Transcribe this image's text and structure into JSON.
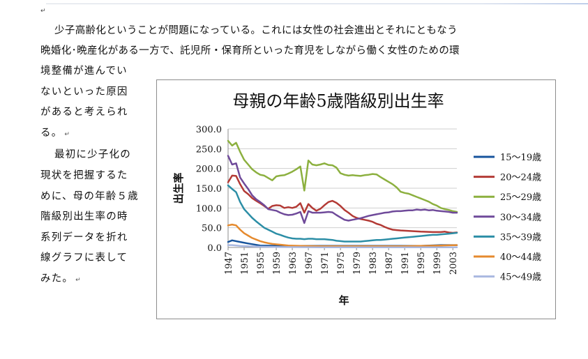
{
  "document": {
    "paragraph_mark": "↵",
    "intro_lines": [
      "少子高齢化ということが問題になっている。これには女性の社会進出とそれにともなう",
      "晩婚化･晩産化がある一方で、託児所・保育所といった育児をしながら働く女性のための環"
    ],
    "side_lines": [
      "境整備が進んでい",
      "ないといった原因",
      "があると考えられ",
      "る。",
      "最初に少子化の",
      "現状を把握するた",
      "めに、母の年齢５歳",
      "階級別出生率の時",
      "系列データを折れ",
      "線グラフに表して",
      "みた。"
    ]
  },
  "chart_data": {
    "type": "line",
    "title": "母親の年齢5歳階級別出生率",
    "xlabel": "年",
    "ylabel": "出生率",
    "ylim": [
      0,
      300
    ],
    "yticks": [
      "0.0",
      "50.0",
      "100.0",
      "150.0",
      "200.0",
      "250.0",
      "300.0"
    ],
    "xlim": [
      1947,
      2004
    ],
    "xticks": [
      "1947",
      "1951",
      "1955",
      "1959",
      "1963",
      "1967",
      "1971",
      "1975",
      "1979",
      "1983",
      "1987",
      "1991",
      "1995",
      "1999",
      "2003"
    ],
    "grid": true,
    "legend_position": "right",
    "series": [
      {
        "name": "15～19歳",
        "color": "#17549c",
        "points": [
          [
            1947,
            14
          ],
          [
            1948,
            18
          ],
          [
            1950,
            14
          ],
          [
            1952,
            10
          ],
          [
            1955,
            5
          ],
          [
            1960,
            4
          ],
          [
            1965,
            4
          ],
          [
            1970,
            4
          ],
          [
            1975,
            4
          ],
          [
            1980,
            4
          ],
          [
            1985,
            4
          ],
          [
            1990,
            4
          ],
          [
            1995,
            4
          ],
          [
            2000,
            6
          ],
          [
            2004,
            6
          ]
        ]
      },
      {
        "name": "20～24歳",
        "color": "#b33a35",
        "points": [
          [
            1947,
            165
          ],
          [
            1948,
            182
          ],
          [
            1949,
            181
          ],
          [
            1950,
            160
          ],
          [
            1951,
            143
          ],
          [
            1952,
            135
          ],
          [
            1953,
            125
          ],
          [
            1954,
            118
          ],
          [
            1955,
            112
          ],
          [
            1956,
            105
          ],
          [
            1957,
            98
          ],
          [
            1958,
            105
          ],
          [
            1959,
            107
          ],
          [
            1960,
            106
          ],
          [
            1961,
            100
          ],
          [
            1962,
            102
          ],
          [
            1963,
            100
          ],
          [
            1964,
            103
          ],
          [
            1965,
            112
          ],
          [
            1966,
            88
          ],
          [
            1967,
            110
          ],
          [
            1968,
            100
          ],
          [
            1969,
            93
          ],
          [
            1970,
            98
          ],
          [
            1971,
            107
          ],
          [
            1972,
            115
          ],
          [
            1973,
            118
          ],
          [
            1974,
            113
          ],
          [
            1975,
            105
          ],
          [
            1976,
            95
          ],
          [
            1977,
            88
          ],
          [
            1978,
            80
          ],
          [
            1979,
            75
          ],
          [
            1980,
            72
          ],
          [
            1981,
            70
          ],
          [
            1982,
            68
          ],
          [
            1983,
            65
          ],
          [
            1984,
            60
          ],
          [
            1985,
            57
          ],
          [
            1986,
            52
          ],
          [
            1987,
            48
          ],
          [
            1988,
            45
          ],
          [
            1989,
            44
          ],
          [
            1990,
            43
          ],
          [
            1992,
            42
          ],
          [
            1995,
            40
          ],
          [
            1998,
            39
          ],
          [
            2000,
            39
          ],
          [
            2001,
            40
          ],
          [
            2002,
            38
          ],
          [
            2003,
            37
          ],
          [
            2004,
            38
          ]
        ]
      },
      {
        "name": "25～29歳",
        "color": "#8cb03f",
        "points": [
          [
            1947,
            270
          ],
          [
            1948,
            258
          ],
          [
            1949,
            265
          ],
          [
            1950,
            242
          ],
          [
            1951,
            222
          ],
          [
            1952,
            210
          ],
          [
            1953,
            198
          ],
          [
            1954,
            190
          ],
          [
            1955,
            184
          ],
          [
            1956,
            182
          ],
          [
            1957,
            176
          ],
          [
            1958,
            170
          ],
          [
            1959,
            180
          ],
          [
            1960,
            182
          ],
          [
            1961,
            183
          ],
          [
            1962,
            187
          ],
          [
            1963,
            192
          ],
          [
            1964,
            198
          ],
          [
            1965,
            205
          ],
          [
            1966,
            144
          ],
          [
            1967,
            220
          ],
          [
            1968,
            210
          ],
          [
            1969,
            208
          ],
          [
            1970,
            210
          ],
          [
            1971,
            213
          ],
          [
            1972,
            209
          ],
          [
            1973,
            208
          ],
          [
            1974,
            202
          ],
          [
            1975,
            188
          ],
          [
            1976,
            184
          ],
          [
            1977,
            182
          ],
          [
            1978,
            183
          ],
          [
            1979,
            182
          ],
          [
            1980,
            181
          ],
          [
            1981,
            183
          ],
          [
            1982,
            184
          ],
          [
            1983,
            186
          ],
          [
            1984,
            185
          ],
          [
            1985,
            178
          ],
          [
            1986,
            172
          ],
          [
            1987,
            166
          ],
          [
            1988,
            160
          ],
          [
            1989,
            152
          ],
          [
            1990,
            141
          ],
          [
            1991,
            138
          ],
          [
            1992,
            136
          ],
          [
            1993,
            132
          ],
          [
            1994,
            128
          ],
          [
            1995,
            124
          ],
          [
            1996,
            120
          ],
          [
            1997,
            116
          ],
          [
            1998,
            110
          ],
          [
            1999,
            106
          ],
          [
            2000,
            100
          ],
          [
            2001,
            97
          ],
          [
            2002,
            95
          ],
          [
            2003,
            92
          ],
          [
            2004,
            90
          ]
        ]
      },
      {
        "name": "30～34歳",
        "color": "#6f4a9a",
        "points": [
          [
            1947,
            232
          ],
          [
            1948,
            210
          ],
          [
            1949,
            213
          ],
          [
            1950,
            177
          ],
          [
            1951,
            162
          ],
          [
            1952,
            148
          ],
          [
            1953,
            132
          ],
          [
            1954,
            122
          ],
          [
            1955,
            115
          ],
          [
            1956,
            107
          ],
          [
            1957,
            97
          ],
          [
            1958,
            95
          ],
          [
            1959,
            93
          ],
          [
            1960,
            88
          ],
          [
            1961,
            84
          ],
          [
            1962,
            82
          ],
          [
            1963,
            83
          ],
          [
            1964,
            86
          ],
          [
            1965,
            90
          ],
          [
            1966,
            62
          ],
          [
            1967,
            92
          ],
          [
            1968,
            88
          ],
          [
            1969,
            88
          ],
          [
            1970,
            88
          ],
          [
            1971,
            89
          ],
          [
            1972,
            90
          ],
          [
            1973,
            89
          ],
          [
            1974,
            82
          ],
          [
            1975,
            76
          ],
          [
            1976,
            70
          ],
          [
            1977,
            68
          ],
          [
            1978,
            70
          ],
          [
            1979,
            72
          ],
          [
            1980,
            74
          ],
          [
            1981,
            77
          ],
          [
            1982,
            80
          ],
          [
            1983,
            82
          ],
          [
            1984,
            84
          ],
          [
            1985,
            86
          ],
          [
            1986,
            88
          ],
          [
            1987,
            89
          ],
          [
            1988,
            91
          ],
          [
            1989,
            92
          ],
          [
            1990,
            92
          ],
          [
            1991,
            93
          ],
          [
            1992,
            94
          ],
          [
            1993,
            94
          ],
          [
            1994,
            96
          ],
          [
            1995,
            95
          ],
          [
            1996,
            96
          ],
          [
            1997,
            94
          ],
          [
            1998,
            95
          ],
          [
            1999,
            93
          ],
          [
            2000,
            92
          ],
          [
            2001,
            91
          ],
          [
            2002,
            90
          ],
          [
            2003,
            88
          ],
          [
            2004,
            88
          ]
        ]
      },
      {
        "name": "35～39歳",
        "color": "#2c8ea6",
        "points": [
          [
            1947,
            157
          ],
          [
            1948,
            148
          ],
          [
            1949,
            140
          ],
          [
            1950,
            115
          ],
          [
            1951,
            97
          ],
          [
            1952,
            86
          ],
          [
            1953,
            75
          ],
          [
            1954,
            66
          ],
          [
            1955,
            58
          ],
          [
            1956,
            50
          ],
          [
            1957,
            45
          ],
          [
            1958,
            40
          ],
          [
            1959,
            35
          ],
          [
            1960,
            32
          ],
          [
            1961,
            28
          ],
          [
            1962,
            25
          ],
          [
            1963,
            23
          ],
          [
            1964,
            22
          ],
          [
            1965,
            22
          ],
          [
            1966,
            21
          ],
          [
            1967,
            22
          ],
          [
            1968,
            22
          ],
          [
            1969,
            21
          ],
          [
            1970,
            21
          ],
          [
            1971,
            21
          ],
          [
            1972,
            20
          ],
          [
            1973,
            19
          ],
          [
            1974,
            17
          ],
          [
            1975,
            16
          ],
          [
            1976,
            15
          ],
          [
            1977,
            15
          ],
          [
            1978,
            15
          ],
          [
            1979,
            15
          ],
          [
            1980,
            15
          ],
          [
            1981,
            16
          ],
          [
            1982,
            17
          ],
          [
            1983,
            18
          ],
          [
            1984,
            19
          ],
          [
            1985,
            19
          ],
          [
            1986,
            20
          ],
          [
            1987,
            21
          ],
          [
            1988,
            22
          ],
          [
            1989,
            23
          ],
          [
            1990,
            24
          ],
          [
            1991,
            25
          ],
          [
            1992,
            26
          ],
          [
            1993,
            27
          ],
          [
            1994,
            28
          ],
          [
            1995,
            29
          ],
          [
            1996,
            30
          ],
          [
            1997,
            31
          ],
          [
            1998,
            32
          ],
          [
            1999,
            32
          ],
          [
            2000,
            33
          ],
          [
            2001,
            34
          ],
          [
            2002,
            35
          ],
          [
            2003,
            36
          ],
          [
            2004,
            37
          ]
        ]
      },
      {
        "name": "40～44歳",
        "color": "#e58a2e",
        "points": [
          [
            1947,
            56
          ],
          [
            1948,
            58
          ],
          [
            1949,
            56
          ],
          [
            1950,
            45
          ],
          [
            1951,
            36
          ],
          [
            1952,
            30
          ],
          [
            1953,
            24
          ],
          [
            1954,
            20
          ],
          [
            1955,
            16
          ],
          [
            1956,
            13
          ],
          [
            1957,
            11
          ],
          [
            1958,
            9
          ],
          [
            1959,
            8
          ],
          [
            1960,
            7
          ],
          [
            1962,
            5
          ],
          [
            1965,
            4
          ],
          [
            1970,
            3
          ],
          [
            1975,
            3
          ],
          [
            1980,
            3
          ],
          [
            1985,
            3
          ],
          [
            1990,
            3
          ],
          [
            1995,
            4
          ],
          [
            2000,
            5
          ],
          [
            2004,
            6
          ]
        ]
      },
      {
        "name": "45～49歳",
        "color": "#a9b8e0",
        "points": [
          [
            1947,
            6
          ],
          [
            1948,
            6
          ],
          [
            1950,
            4
          ],
          [
            1952,
            3
          ],
          [
            1955,
            2
          ],
          [
            1960,
            1
          ],
          [
            1970,
            0.5
          ],
          [
            1980,
            0.3
          ],
          [
            1990,
            0.3
          ],
          [
            2004,
            0.3
          ]
        ]
      }
    ]
  }
}
